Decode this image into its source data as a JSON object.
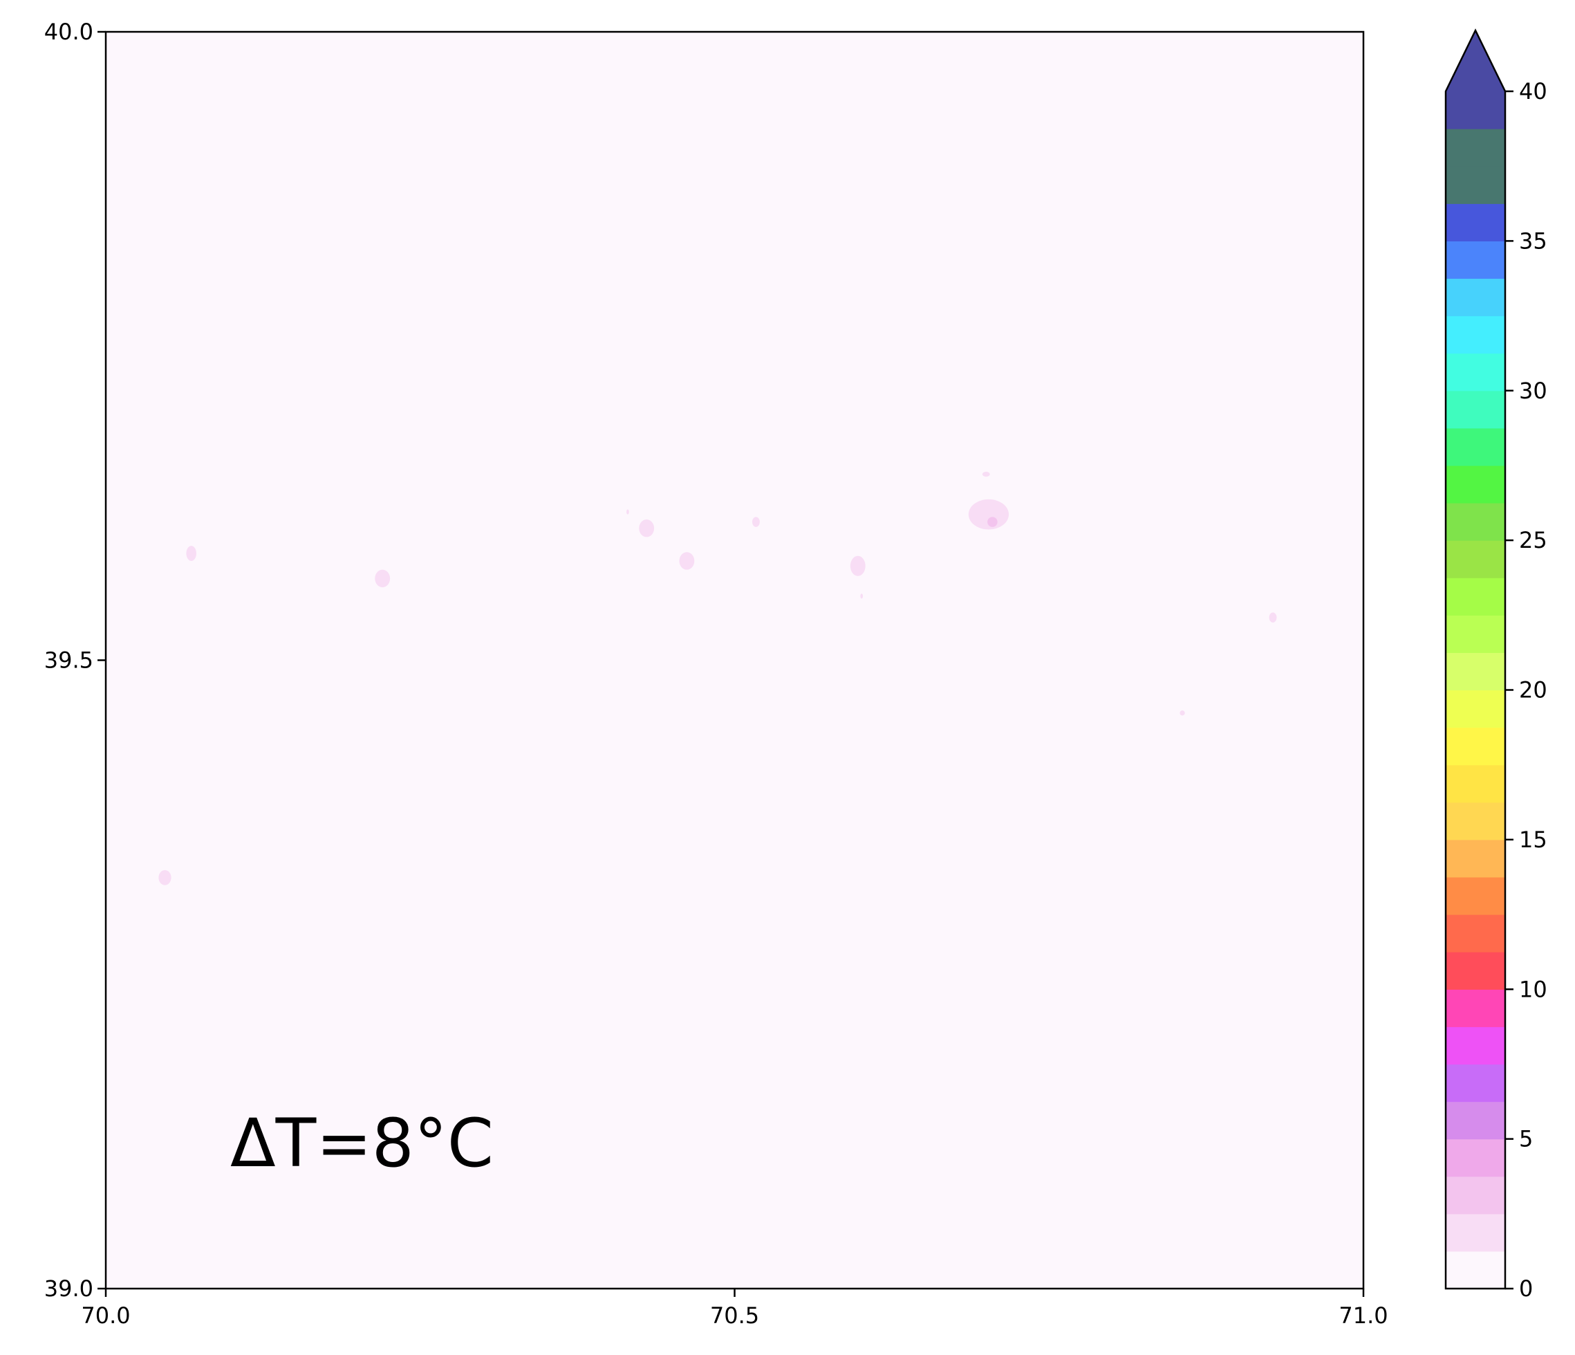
{
  "chart_data": {
    "type": "heatmap",
    "title": "",
    "xlabel": "",
    "ylabel": "",
    "xlim": [
      70.0,
      71.0
    ],
    "ylim": [
      39.0,
      40.0
    ],
    "x_ticks": [
      "70.0",
      "70.5",
      "71.0"
    ],
    "y_ticks": [
      "39.0",
      "39.5",
      "40.0"
    ],
    "x_tick_values": [
      70.0,
      70.5,
      71.0
    ],
    "y_tick_values": [
      39.0,
      39.5,
      40.0
    ],
    "annotation": "ΔT=8°C",
    "grid": false,
    "background_color": "#fdf7fd",
    "colorbar": {
      "min": 0,
      "max": 40,
      "step": 1.5,
      "extend": "max",
      "tick_values": [
        0,
        5,
        10,
        15,
        20,
        25,
        30,
        35,
        40
      ],
      "tick_labels": [
        "0",
        "5",
        "10",
        "15",
        "20",
        "25",
        "30",
        "35",
        "40"
      ],
      "colors": [
        "#fdf7fd",
        "#f8ddf5",
        "#f3c4ee",
        "#efa9ea",
        "#d68cec",
        "#c86cf8",
        "#ee52f6",
        "#ff46b6",
        "#ff4d5a",
        "#ff6a4c",
        "#ff8c46",
        "#ffb755",
        "#ffd752",
        "#ffe445",
        "#fff648",
        "#eeff52",
        "#d7ff6a",
        "#baff53",
        "#a5fc47",
        "#9ae446",
        "#7fe34b",
        "#53f543",
        "#3ef77b",
        "#3ffcbe",
        "#42fde1",
        "#44eefe",
        "#47d2fc",
        "#4b84fb",
        "#4757dc",
        "#48776f",
        "#48776f",
        "#4a4aa3"
      ],
      "extend_color": "#4a4aa3"
    },
    "features": [
      {
        "lon": 70.068,
        "lat": 39.585,
        "rx": 0.004,
        "ry": 0.006,
        "value": 2
      },
      {
        "lon": 70.22,
        "lat": 39.565,
        "rx": 0.006,
        "ry": 0.007,
        "value": 2
      },
      {
        "lon": 70.43,
        "lat": 39.605,
        "rx": 0.006,
        "ry": 0.007,
        "value": 2
      },
      {
        "lon": 70.462,
        "lat": 39.579,
        "rx": 0.006,
        "ry": 0.007,
        "value": 2
      },
      {
        "lon": 70.517,
        "lat": 39.61,
        "rx": 0.003,
        "ry": 0.004,
        "value": 2
      },
      {
        "lon": 70.598,
        "lat": 39.575,
        "rx": 0.006,
        "ry": 0.008,
        "value": 2
      },
      {
        "lon": 70.702,
        "lat": 39.616,
        "rx": 0.016,
        "ry": 0.012,
        "value": 2
      },
      {
        "lon": 70.705,
        "lat": 39.61,
        "rx": 0.004,
        "ry": 0.004,
        "value": 3
      },
      {
        "lon": 70.7,
        "lat": 39.648,
        "rx": 0.003,
        "ry": 0.002,
        "value": 2
      },
      {
        "lon": 70.928,
        "lat": 39.534,
        "rx": 0.003,
        "ry": 0.004,
        "value": 2
      },
      {
        "lon": 70.047,
        "lat": 39.327,
        "rx": 0.005,
        "ry": 0.006,
        "value": 2
      },
      {
        "lon": 70.856,
        "lat": 39.458,
        "rx": 0.002,
        "ry": 0.002,
        "value": 2
      },
      {
        "lon": 70.415,
        "lat": 39.618,
        "rx": 0.001,
        "ry": 0.002,
        "value": 2
      },
      {
        "lon": 70.601,
        "lat": 39.551,
        "rx": 0.001,
        "ry": 0.002,
        "value": 2
      }
    ]
  }
}
